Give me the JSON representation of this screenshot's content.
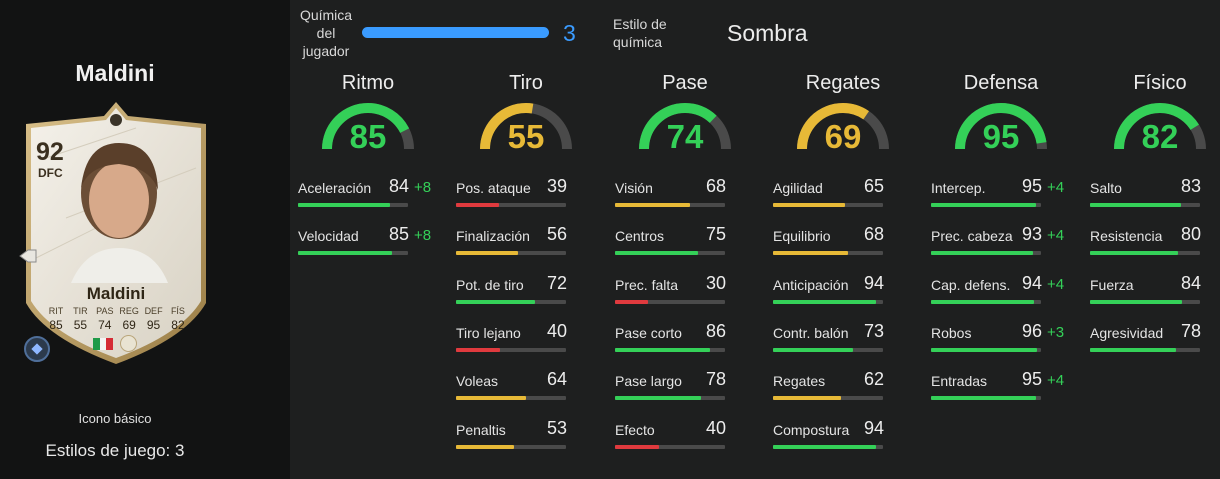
{
  "player": {
    "name": "Maldini",
    "card_name": "Maldini",
    "rating": "92",
    "position": "DFC",
    "version": "Icono básico",
    "playstyles": "Estilos de juego: 3",
    "card_stat_labels": [
      "RIT",
      "TIR",
      "PAS",
      "REG",
      "DEF",
      "FÍS"
    ],
    "card_stat_values": [
      "85",
      "55",
      "74",
      "69",
      "95",
      "82"
    ]
  },
  "header": {
    "chem_label_lines": [
      "Química",
      "del",
      "jugador"
    ],
    "chem_value": "3",
    "chem_fraction": 1.0,
    "style_label_lines": [
      "Estilo de",
      "química"
    ],
    "style_value": "Sombra"
  },
  "colors": {
    "green": "#34d058",
    "yellow": "#e7b937",
    "red": "#e03a3e",
    "blue": "#3a9bff"
  },
  "categories": [
    {
      "title": "Ritmo",
      "value": 85,
      "stats": [
        {
          "label": "Aceleración",
          "value": 84,
          "boost": "+8"
        },
        {
          "label": "Velocidad",
          "value": 85,
          "boost": "+8"
        }
      ]
    },
    {
      "title": "Tiro",
      "value": 55,
      "stats": [
        {
          "label": "Pos. ataque",
          "value": 39,
          "boost": ""
        },
        {
          "label": "Finalización",
          "value": 56,
          "boost": ""
        },
        {
          "label": "Pot. de tiro",
          "value": 72,
          "boost": ""
        },
        {
          "label": "Tiro lejano",
          "value": 40,
          "boost": ""
        },
        {
          "label": "Voleas",
          "value": 64,
          "boost": ""
        },
        {
          "label": "Penaltis",
          "value": 53,
          "boost": ""
        }
      ]
    },
    {
      "title": "Pase",
      "value": 74,
      "stats": [
        {
          "label": "Visión",
          "value": 68,
          "boost": ""
        },
        {
          "label": "Centros",
          "value": 75,
          "boost": ""
        },
        {
          "label": "Prec. falta",
          "value": 30,
          "boost": ""
        },
        {
          "label": "Pase corto",
          "value": 86,
          "boost": ""
        },
        {
          "label": "Pase largo",
          "value": 78,
          "boost": ""
        },
        {
          "label": "Efecto",
          "value": 40,
          "boost": ""
        }
      ]
    },
    {
      "title": "Regates",
      "value": 69,
      "stats": [
        {
          "label": "Agilidad",
          "value": 65,
          "boost": ""
        },
        {
          "label": "Equilibrio",
          "value": 68,
          "boost": ""
        },
        {
          "label": "Anticipación",
          "value": 94,
          "boost": ""
        },
        {
          "label": "Contr. balón",
          "value": 73,
          "boost": ""
        },
        {
          "label": "Regates",
          "value": 62,
          "boost": ""
        },
        {
          "label": "Compostura",
          "value": 94,
          "boost": ""
        }
      ]
    },
    {
      "title": "Defensa",
      "value": 95,
      "stats": [
        {
          "label": "Intercep.",
          "value": 95,
          "boost": "+4"
        },
        {
          "label": "Prec. cabeza",
          "value": 93,
          "boost": "+4"
        },
        {
          "label": "Cap. defens.",
          "value": 94,
          "boost": "+4"
        },
        {
          "label": "Robos",
          "value": 96,
          "boost": "+3"
        },
        {
          "label": "Entradas",
          "value": 95,
          "boost": "+4"
        }
      ]
    },
    {
      "title": "Físico",
      "value": 82,
      "stats": [
        {
          "label": "Salto",
          "value": 83,
          "boost": ""
        },
        {
          "label": "Resistencia",
          "value": 80,
          "boost": ""
        },
        {
          "label": "Fuerza",
          "value": 84,
          "boost": ""
        },
        {
          "label": "Agresividad",
          "value": 78,
          "boost": ""
        }
      ]
    }
  ]
}
